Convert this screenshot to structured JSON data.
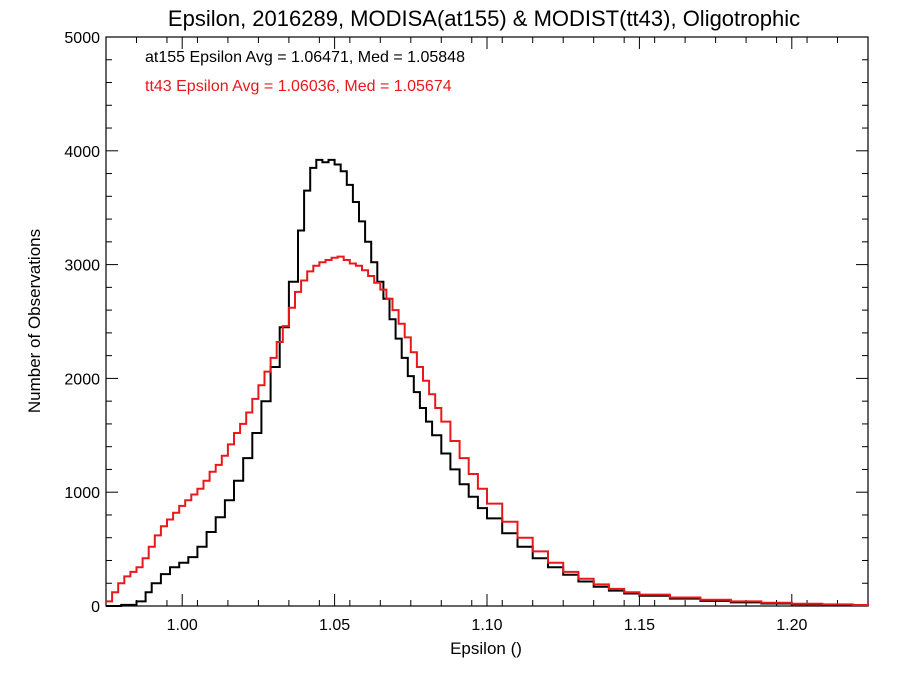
{
  "chart_data": {
    "type": "line",
    "step": true,
    "title": "Epsilon, 2016289, MODISA(at155) & MODIST(tt43), Oligotrophic",
    "xlabel": "Epsilon ()",
    "ylabel": "Number of Observations",
    "xlim": [
      0.975,
      1.225
    ],
    "ylim": [
      0,
      5000
    ],
    "x_ticks": [
      1.0,
      1.05,
      1.1,
      1.15,
      1.2
    ],
    "x_tick_labels": [
      "1.00",
      "1.05",
      "1.10",
      "1.15",
      "1.20"
    ],
    "y_ticks": [
      0,
      1000,
      2000,
      3000,
      4000,
      5000
    ],
    "y_tick_labels": [
      "0",
      "1000",
      "2000",
      "3000",
      "4000",
      "5000"
    ],
    "grid": false,
    "annotations": [
      {
        "text": "at155 Epsilon Avg = 1.06471, Med = 1.05848",
        "color": "#000000"
      },
      {
        "text": "tt43 Epsilon Avg = 1.06036, Med = 1.05674",
        "color": "#e8191c"
      }
    ],
    "series": [
      {
        "color": "#000000",
        "points": [
          [
            0.975,
            0
          ],
          [
            0.98,
            10
          ],
          [
            0.985,
            40
          ],
          [
            0.988,
            120
          ],
          [
            0.99,
            200
          ],
          [
            0.993,
            280
          ],
          [
            0.996,
            340
          ],
          [
            0.999,
            380
          ],
          [
            1.002,
            430
          ],
          [
            1.005,
            520
          ],
          [
            1.008,
            650
          ],
          [
            1.011,
            780
          ],
          [
            1.014,
            930
          ],
          [
            1.017,
            1100
          ],
          [
            1.02,
            1300
          ],
          [
            1.023,
            1520
          ],
          [
            1.026,
            1800
          ],
          [
            1.029,
            2100
          ],
          [
            1.032,
            2450
          ],
          [
            1.035,
            2850
          ],
          [
            1.038,
            3300
          ],
          [
            1.04,
            3650
          ],
          [
            1.042,
            3850
          ],
          [
            1.044,
            3920
          ],
          [
            1.046,
            3900
          ],
          [
            1.048,
            3920
          ],
          [
            1.05,
            3880
          ],
          [
            1.052,
            3820
          ],
          [
            1.054,
            3700
          ],
          [
            1.056,
            3550
          ],
          [
            1.058,
            3380
          ],
          [
            1.06,
            3200
          ],
          [
            1.062,
            3020
          ],
          [
            1.064,
            2850
          ],
          [
            1.066,
            2700
          ],
          [
            1.068,
            2520
          ],
          [
            1.07,
            2350
          ],
          [
            1.072,
            2180
          ],
          [
            1.074,
            2020
          ],
          [
            1.076,
            1880
          ],
          [
            1.078,
            1740
          ],
          [
            1.08,
            1620
          ],
          [
            1.082,
            1500
          ],
          [
            1.085,
            1340
          ],
          [
            1.088,
            1200
          ],
          [
            1.091,
            1070
          ],
          [
            1.094,
            960
          ],
          [
            1.097,
            860
          ],
          [
            1.1,
            770
          ],
          [
            1.105,
            640
          ],
          [
            1.11,
            520
          ],
          [
            1.115,
            420
          ],
          [
            1.12,
            340
          ],
          [
            1.125,
            275
          ],
          [
            1.13,
            215
          ],
          [
            1.135,
            170
          ],
          [
            1.14,
            135
          ],
          [
            1.145,
            110
          ],
          [
            1.15,
            90
          ],
          [
            1.16,
            65
          ],
          [
            1.17,
            45
          ],
          [
            1.18,
            32
          ],
          [
            1.19,
            22
          ],
          [
            1.2,
            15
          ],
          [
            1.21,
            10
          ],
          [
            1.22,
            6
          ],
          [
            1.225,
            4
          ]
        ]
      },
      {
        "color": "#e8191c",
        "points": [
          [
            0.975,
            40
          ],
          [
            0.977,
            120
          ],
          [
            0.979,
            200
          ],
          [
            0.981,
            260
          ],
          [
            0.983,
            300
          ],
          [
            0.985,
            340
          ],
          [
            0.987,
            420
          ],
          [
            0.989,
            520
          ],
          [
            0.991,
            620
          ],
          [
            0.993,
            700
          ],
          [
            0.995,
            760
          ],
          [
            0.997,
            820
          ],
          [
            0.999,
            880
          ],
          [
            1.001,
            930
          ],
          [
            1.003,
            980
          ],
          [
            1.005,
            1030
          ],
          [
            1.007,
            1100
          ],
          [
            1.009,
            1180
          ],
          [
            1.011,
            1240
          ],
          [
            1.013,
            1320
          ],
          [
            1.015,
            1420
          ],
          [
            1.017,
            1520
          ],
          [
            1.019,
            1600
          ],
          [
            1.021,
            1700
          ],
          [
            1.023,
            1820
          ],
          [
            1.025,
            1940
          ],
          [
            1.027,
            2060
          ],
          [
            1.029,
            2180
          ],
          [
            1.031,
            2320
          ],
          [
            1.033,
            2460
          ],
          [
            1.035,
            2620
          ],
          [
            1.037,
            2760
          ],
          [
            1.039,
            2860
          ],
          [
            1.041,
            2940
          ],
          [
            1.043,
            2990
          ],
          [
            1.045,
            3020
          ],
          [
            1.047,
            3040
          ],
          [
            1.049,
            3060
          ],
          [
            1.051,
            3070
          ],
          [
            1.053,
            3040
          ],
          [
            1.055,
            3010
          ],
          [
            1.057,
            2990
          ],
          [
            1.059,
            2950
          ],
          [
            1.061,
            2900
          ],
          [
            1.063,
            2840
          ],
          [
            1.065,
            2780
          ],
          [
            1.067,
            2700
          ],
          [
            1.069,
            2600
          ],
          [
            1.071,
            2480
          ],
          [
            1.073,
            2360
          ],
          [
            1.075,
            2230
          ],
          [
            1.077,
            2100
          ],
          [
            1.079,
            1980
          ],
          [
            1.081,
            1860
          ],
          [
            1.083,
            1740
          ],
          [
            1.085,
            1620
          ],
          [
            1.088,
            1450
          ],
          [
            1.091,
            1300
          ],
          [
            1.094,
            1160
          ],
          [
            1.097,
            1030
          ],
          [
            1.1,
            900
          ],
          [
            1.105,
            740
          ],
          [
            1.11,
            600
          ],
          [
            1.115,
            480
          ],
          [
            1.12,
            380
          ],
          [
            1.125,
            300
          ],
          [
            1.13,
            240
          ],
          [
            1.135,
            190
          ],
          [
            1.14,
            150
          ],
          [
            1.145,
            120
          ],
          [
            1.15,
            100
          ],
          [
            1.16,
            75
          ],
          [
            1.17,
            55
          ],
          [
            1.18,
            40
          ],
          [
            1.19,
            28
          ],
          [
            1.2,
            20
          ],
          [
            1.21,
            14
          ],
          [
            1.22,
            9
          ],
          [
            1.225,
            6
          ]
        ]
      }
    ]
  }
}
